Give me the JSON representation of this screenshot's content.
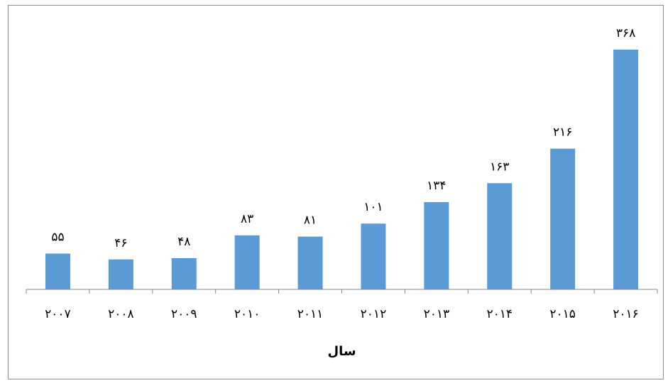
{
  "chart_data": {
    "type": "bar",
    "categories": [
      "۲۰۰۷",
      "۲۰۰۸",
      "۲۰۰۹",
      "۲۰۱۰",
      "۲۰۱۱",
      "۲۰۱۲",
      "۲۰۱۳",
      "۲۰۱۴",
      "۲۰۱۵",
      "۲۰۱۶"
    ],
    "values": [
      55,
      46,
      48,
      83,
      81,
      101,
      134,
      163,
      216,
      368
    ],
    "data_labels": [
      "۵۵",
      "۴۶",
      "۴۸",
      "۸۳",
      "۸۱",
      "۱۰۱",
      "۱۳۴",
      "۱۶۳",
      "۲۱۶",
      "۳۶۸"
    ],
    "xlabel": "سال",
    "ylabel": "",
    "ylim": [
      0,
      368
    ],
    "grid": false,
    "legend": "none",
    "bar_color": "#5b9bd5",
    "axis_color": "#868686"
  }
}
